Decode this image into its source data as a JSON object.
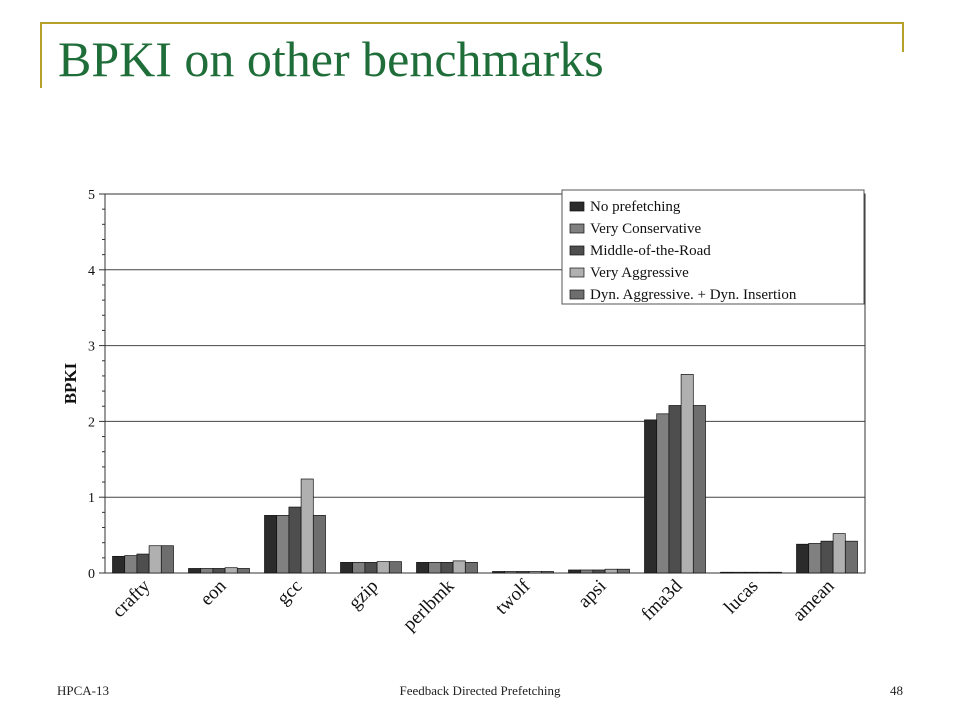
{
  "slide": {
    "title": "BPKI on other benchmarks",
    "accent_color": "#b5a02a",
    "title_color": "#1f6e3a"
  },
  "footer": {
    "left": "HPCA-13",
    "center": "Feedback Directed Prefetching",
    "right": "48"
  },
  "chart_data": {
    "type": "bar",
    "title": "",
    "xlabel": "",
    "ylabel": "BPKI",
    "ylim": [
      0,
      5
    ],
    "yticks": [
      "0",
      "1",
      "2",
      "3",
      "4",
      "5"
    ],
    "grid": true,
    "legend_position": "top-right",
    "categories": [
      "crafty",
      "eon",
      "gcc",
      "gzip",
      "perlbmk",
      "twolf",
      "apsi",
      "fma3d",
      "lucas",
      "amean"
    ],
    "series": [
      {
        "name": "No prefetching",
        "color": "#2b2b2b",
        "values": [
          0.22,
          0.06,
          0.76,
          0.14,
          0.14,
          0.02,
          0.04,
          2.02,
          0.01,
          0.38
        ]
      },
      {
        "name": "Very Conservative",
        "color": "#808080",
        "values": [
          0.23,
          0.06,
          0.76,
          0.14,
          0.14,
          0.02,
          0.04,
          2.1,
          0.01,
          0.39
        ]
      },
      {
        "name": "Middle-of-the-Road",
        "color": "#4e4e4e",
        "values": [
          0.25,
          0.06,
          0.87,
          0.14,
          0.14,
          0.02,
          0.04,
          2.21,
          0.01,
          0.42
        ]
      },
      {
        "name": "Very Aggressive",
        "color": "#b0b0b0",
        "values": [
          0.36,
          0.07,
          1.24,
          0.15,
          0.16,
          0.02,
          0.05,
          2.62,
          0.01,
          0.52
        ]
      },
      {
        "name": "Dyn. Aggressive. + Dyn. Insertion",
        "color": "#6e6e6e",
        "values": [
          0.36,
          0.06,
          0.76,
          0.15,
          0.14,
          0.02,
          0.05,
          2.21,
          0.01,
          0.42
        ]
      }
    ]
  }
}
